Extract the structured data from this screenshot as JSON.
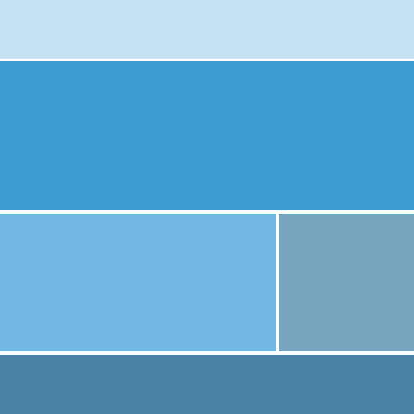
{
  "blocks": {
    "top": {
      "color": "#c6e1f3"
    },
    "upper_wide": {
      "color": "#3e9ed3"
    },
    "middle_left": {
      "color": "#71b8e2"
    },
    "middle_right": {
      "color": "#78a4bd"
    },
    "bottom": {
      "color": "#4a83a4"
    }
  },
  "divider_color": "#ffffff"
}
